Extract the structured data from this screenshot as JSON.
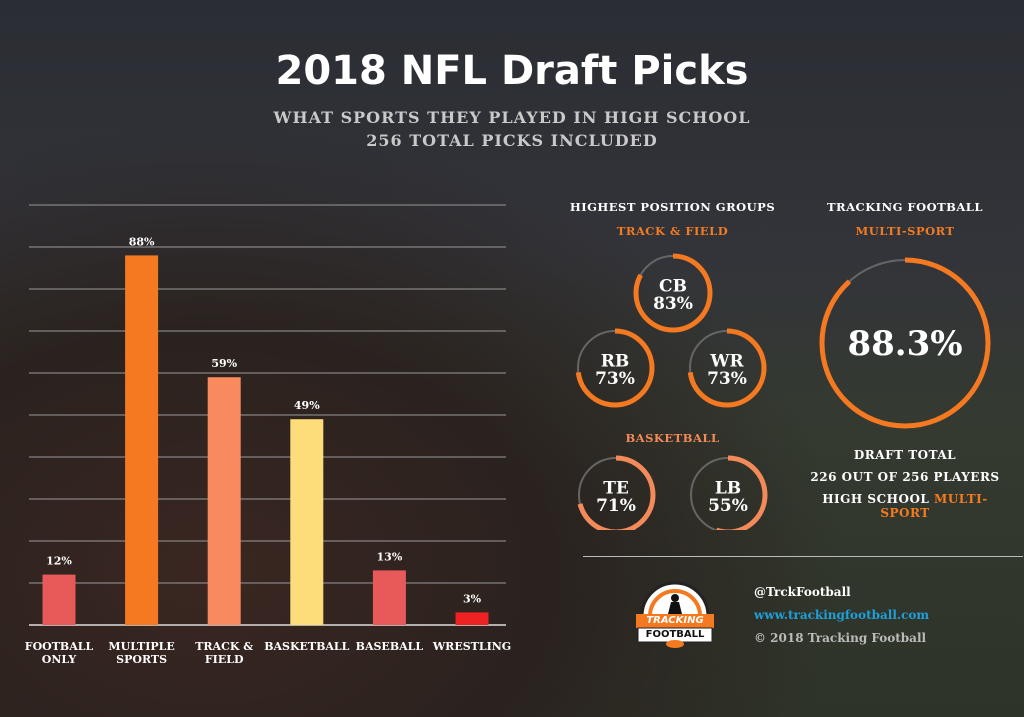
{
  "title": "2018 NFL Draft Picks",
  "subtitle_1": "WHAT SPORTS THEY PLAYED IN HIGH SCHOOL",
  "subtitle_2": "256 TOTAL PICKS INCLUDED",
  "chart_data": {
    "type": "bar",
    "categories": [
      "FOOTBALL ONLY",
      "MULTIPLE SPORTS",
      "TRACK & FIELD",
      "BASKETBALL",
      "BASEBALL",
      "WRESTLING"
    ],
    "values": [
      12,
      88,
      59,
      49,
      13,
      3
    ],
    "data_labels": [
      "12%",
      "88%",
      "59%",
      "49%",
      "13%",
      "3%"
    ],
    "colors": [
      "#e85a5a",
      "#f47920",
      "#f88b5e",
      "#fddc7a",
      "#e85a5a",
      "#ee2222"
    ],
    "ylim": [
      0,
      100
    ],
    "grid": true,
    "unit": "%"
  },
  "positions": {
    "heading": "HIGHEST POSITION GROUPS",
    "track_label": "TRACK & FIELD",
    "basketball_label": "BASKETBALL",
    "rings": [
      {
        "pos": "CB",
        "pct_label": "83%",
        "pct": 83,
        "color": "#f47920"
      },
      {
        "pos": "RB",
        "pct_label": "73%",
        "pct": 73,
        "color": "#f47920"
      },
      {
        "pos": "WR",
        "pct_label": "73%",
        "pct": 73,
        "color": "#f47920"
      },
      {
        "pos": "TE",
        "pct_label": "71%",
        "pct": 71,
        "color": "#f38a5a"
      },
      {
        "pos": "LB",
        "pct_label": "55%",
        "pct": 55,
        "color": "#f38a5a"
      }
    ]
  },
  "tracking": {
    "heading": "TRACKING FOOTBALL",
    "label": "MULTI-SPORT",
    "pct_label": "88.3%",
    "pct": 88.3,
    "draft_total": "DRAFT TOTAL",
    "count_line": "226 OUT OF 256 PLAYERS",
    "hs_prefix": "HIGH SCHOOL",
    "hs_suffix": "MULTI-SPORT"
  },
  "footer": {
    "logo_text_1": "TRACKING",
    "logo_text_2": "FOOTBALL",
    "handle": "@TrckFootball",
    "url": "www.trackingfootball.com",
    "copyright": "© 2018 Tracking Football"
  },
  "colors": {
    "accent": "#f47920",
    "link": "#1ea0d8"
  }
}
